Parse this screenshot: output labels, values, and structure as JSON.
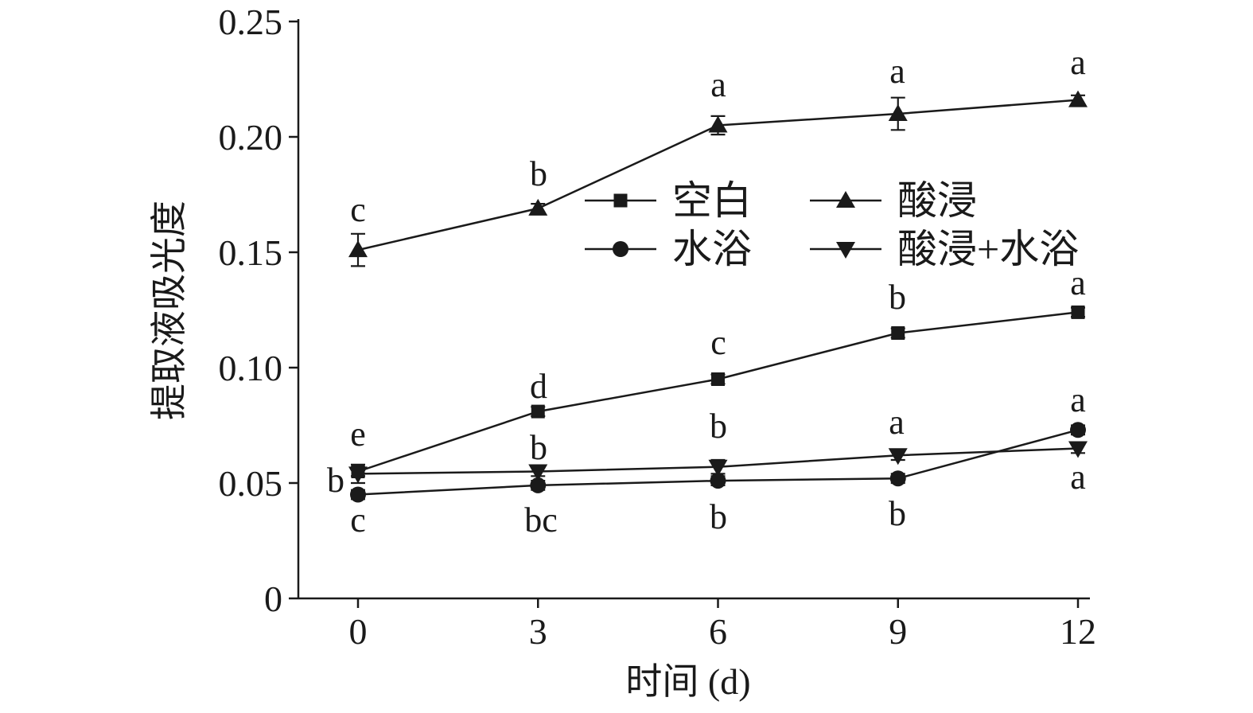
{
  "chart_data": {
    "type": "line",
    "xlabel": "时间 (d)",
    "ylabel": "提取液吸光度",
    "x": [
      0,
      3,
      6,
      9,
      12
    ],
    "x_tick_labels": [
      "0",
      "3",
      "6",
      "9",
      "12"
    ],
    "xlim": [
      -1,
      12
    ],
    "ylim": [
      0,
      0.25
    ],
    "y_ticks": [
      0,
      0.05,
      0.1,
      0.15,
      0.2,
      0.25
    ],
    "y_tick_labels": [
      "0",
      "0.05",
      "0.10",
      "0.15",
      "0.20",
      "0.25"
    ],
    "grid": false,
    "legend": {
      "position": "upper-middle",
      "entries": [
        "空白",
        "酸浸",
        "水浴",
        "酸浸+水浴"
      ]
    },
    "series": [
      {
        "name": "空白",
        "marker": "square",
        "values": [
          0.055,
          0.081,
          0.095,
          0.115,
          0.124
        ],
        "errors": [
          0.002,
          0.002,
          0.002,
          0.002,
          0.002
        ],
        "letters": [
          "e",
          "d",
          "c",
          "b",
          "a"
        ],
        "letter_position": "above"
      },
      {
        "name": "酸浸",
        "marker": "triangle-up",
        "values": [
          0.151,
          0.169,
          0.205,
          0.21,
          0.216
        ],
        "errors": [
          0.007,
          0.002,
          0.004,
          0.007,
          0.002
        ],
        "letters": [
          "c",
          "b",
          "a",
          "a",
          "a"
        ],
        "letter_position": "above"
      },
      {
        "name": "水浴",
        "marker": "circle",
        "values": [
          0.045,
          0.049,
          0.051,
          0.052,
          0.073
        ],
        "errors": [
          0.002,
          0.002,
          0.002,
          0.002,
          0.002
        ],
        "letters": [
          "c",
          "bc",
          "b",
          "b",
          "a"
        ],
        "letter_position": "below"
      },
      {
        "name": "酸浸+水浴",
        "marker": "triangle-down",
        "values": [
          0.054,
          0.055,
          0.057,
          0.062,
          0.065
        ],
        "errors": [
          0.004,
          0.002,
          0.003,
          0.002,
          0.002
        ],
        "letters": [
          "b",
          "b",
          "b",
          "a",
          "a"
        ],
        "letter_position": "mixed"
      }
    ]
  }
}
